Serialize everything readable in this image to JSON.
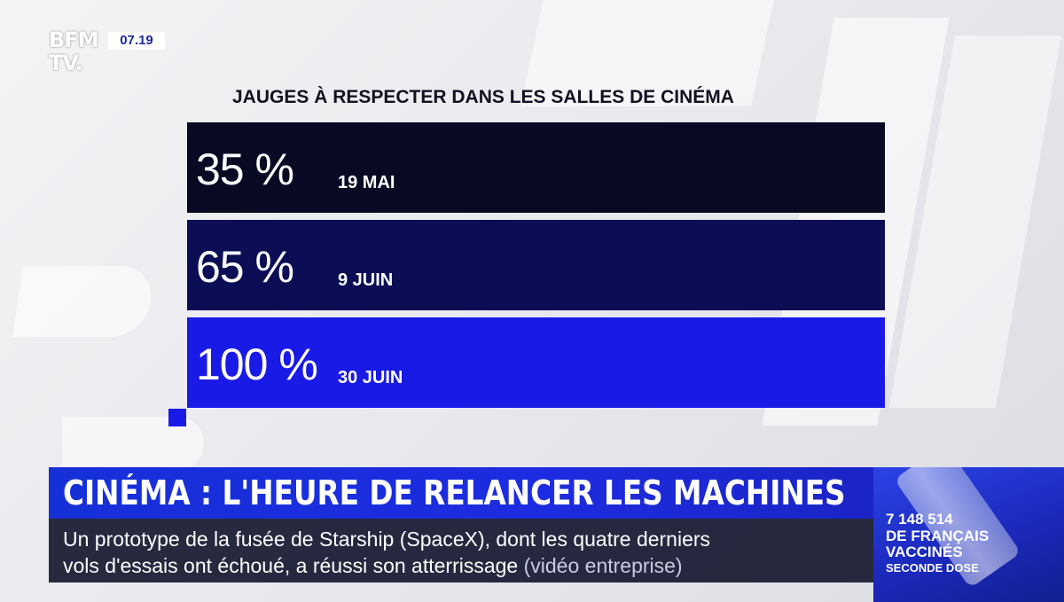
{
  "logo": {
    "line1": "BFM",
    "line2": "TV."
  },
  "clock": "07.19",
  "chart_data": {
    "type": "table",
    "title": "JAUGES À RESPECTER DANS LES SALLES DE CINÉMA",
    "rows": [
      {
        "value": "35 %",
        "date": "19 MAI"
      },
      {
        "value": "65 %",
        "date": "9 JUIN"
      },
      {
        "value": "100 %",
        "date": "30 JUIN"
      }
    ],
    "colors": [
      "#080a24",
      "#0c0e55",
      "#1a1ae6"
    ]
  },
  "headline": "CINÉMA : L'HEURE DE RELANCER LES MACHINES",
  "ticker": {
    "line1": "Un prototype de la fusée de Starship (SpaceX), dont les quatre derniers",
    "line2": "vols d'essais ont échoué, a réussi son atterrissage",
    "note": "(vidéo entreprise)"
  },
  "side_panel": {
    "count": "7 148 514",
    "label": "DE FRANÇAIS VACCINÉS",
    "sub": "SECONDE DOSE"
  }
}
